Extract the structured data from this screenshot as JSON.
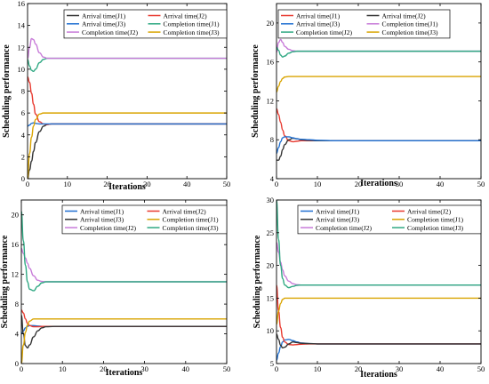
{
  "colors": {
    "blue": "#1f6fd1",
    "red": "#e8392f",
    "black": "#333333",
    "teal": "#138a9e",
    "purple": "#c77ad8",
    "green": "#2ea882",
    "orange": "#d9a400"
  },
  "chart_data": [
    {
      "type": "line",
      "xlabel": "Iterations",
      "ylabel": "Scheduling performance",
      "xlim": [
        0,
        50
      ],
      "ylim": [
        0,
        16
      ],
      "xticks": [
        0,
        10,
        20,
        30,
        40,
        50
      ],
      "yticks": [
        0,
        2,
        4,
        6,
        8,
        10,
        12,
        14,
        16
      ],
      "legend_cols": 2,
      "series": [
        {
          "name": "Arrival time(J1)",
          "color": "black",
          "x": [
            0,
            0.5,
            1,
            1.5,
            2,
            3,
            4,
            5,
            6,
            8,
            10,
            15,
            20,
            30,
            40,
            50
          ],
          "y": [
            0,
            0.8,
            1.6,
            2.5,
            3.3,
            4.3,
            4.8,
            4.95,
            5.0,
            5.0,
            5.0,
            5.0,
            5.0,
            5.0,
            5.0,
            5.0
          ]
        },
        {
          "name": "Arrival time(J2)",
          "color": "red",
          "x": [
            0,
            0.5,
            1,
            1.5,
            2,
            3,
            4,
            5,
            6,
            8,
            10,
            15,
            20,
            30,
            40,
            50
          ],
          "y": [
            9.3,
            8.8,
            7.8,
            6.8,
            5.9,
            5.2,
            5.0,
            4.95,
            5.0,
            5.0,
            5.0,
            5.0,
            5.0,
            5.0,
            5.0,
            5.0
          ]
        },
        {
          "name": "Arrival time(J3)",
          "color": "blue",
          "x": [
            0,
            0.5,
            1,
            1.5,
            2,
            3,
            4,
            5,
            6,
            8,
            10,
            15,
            20,
            30,
            40,
            50
          ],
          "y": [
            4.8,
            4.9,
            5.05,
            5.1,
            5.05,
            5.0,
            5.0,
            5.0,
            5.0,
            5.0,
            5.0,
            5.0,
            5.0,
            5.0,
            5.0,
            5.0
          ]
        },
        {
          "name": "Completion time(J1)",
          "color": "green",
          "x": [
            0,
            0.5,
            1,
            1.5,
            2,
            3,
            4,
            5,
            6,
            8,
            10,
            15,
            20,
            30,
            40,
            50
          ],
          "y": [
            10.9,
            10.3,
            9.9,
            9.8,
            10.0,
            10.6,
            10.9,
            11.0,
            11.0,
            11.0,
            11.0,
            11.0,
            11.0,
            11.0,
            11.0,
            11.0
          ]
        },
        {
          "name": "Completion time(J2)",
          "color": "purple",
          "x": [
            0,
            0.5,
            1,
            1.5,
            2,
            3,
            4,
            5,
            6,
            8,
            10,
            15,
            20,
            30,
            40,
            50
          ],
          "y": [
            11.0,
            12.0,
            12.8,
            12.7,
            12.3,
            11.5,
            11.1,
            11.0,
            11.0,
            11.0,
            11.0,
            11.0,
            11.0,
            11.0,
            11.0,
            11.0
          ]
        },
        {
          "name": "Completion time(J3)",
          "color": "orange",
          "x": [
            0,
            0.5,
            1,
            1.5,
            2,
            3,
            4,
            5,
            6,
            8,
            10,
            15,
            20,
            30,
            40,
            50
          ],
          "y": [
            0,
            2.3,
            3.8,
            4.8,
            5.4,
            5.9,
            6.0,
            6.0,
            6.0,
            6.0,
            6.0,
            6.0,
            6.0,
            6.0,
            6.0,
            6.0
          ]
        }
      ]
    },
    {
      "type": "line",
      "xlabel": "Iterations",
      "ylabel": "Scheduling performance",
      "xlim": [
        0,
        50
      ],
      "ylim": [
        4,
        22
      ],
      "xticks": [
        0,
        10,
        20,
        30,
        40,
        50
      ],
      "yticks": [
        4,
        8,
        12,
        16,
        20
      ],
      "legend_cols": 2,
      "series": [
        {
          "name": "Arrival time(J1)",
          "color": "red",
          "x": [
            0,
            0.5,
            1,
            1.5,
            2,
            3,
            4,
            5,
            6,
            8,
            10,
            15,
            20,
            30,
            40,
            50
          ],
          "y": [
            11.2,
            10.6,
            9.8,
            9.0,
            8.4,
            7.9,
            7.8,
            7.85,
            7.9,
            7.9,
            7.9,
            7.9,
            7.9,
            7.9,
            7.9,
            7.9
          ]
        },
        {
          "name": "Arrival time(J2)",
          "color": "black",
          "x": [
            0,
            0.5,
            1,
            1.5,
            2,
            3,
            4,
            5,
            6,
            8,
            10,
            15,
            20,
            30,
            40,
            50
          ],
          "y": [
            5.9,
            5.9,
            6.3,
            7.0,
            7.5,
            8.0,
            8.15,
            8.1,
            8.0,
            7.95,
            7.9,
            7.9,
            7.9,
            7.9,
            7.9,
            7.9
          ]
        },
        {
          "name": "Arrival time(J3)",
          "color": "blue",
          "x": [
            0,
            0.5,
            1,
            1.5,
            2,
            3,
            4,
            5,
            6,
            8,
            10,
            15,
            20,
            30,
            40,
            50
          ],
          "y": [
            6.6,
            7.2,
            7.8,
            8.2,
            8.3,
            8.3,
            8.2,
            8.1,
            8.05,
            8.0,
            7.95,
            7.9,
            7.9,
            7.9,
            7.9,
            7.9
          ]
        },
        {
          "name": "Completion time(J1)",
          "color": "purple",
          "x": [
            0,
            0.5,
            1,
            1.5,
            2,
            3,
            4,
            5,
            6,
            8,
            10,
            15,
            20,
            30,
            40,
            50
          ],
          "y": [
            17.0,
            18.0,
            18.3,
            18.0,
            17.6,
            17.3,
            17.15,
            17.1,
            17.1,
            17.1,
            17.1,
            17.1,
            17.1,
            17.1,
            17.1,
            17.1
          ]
        },
        {
          "name": "Completion time(J2)",
          "color": "green",
          "x": [
            0,
            0.5,
            1,
            1.5,
            2,
            3,
            4,
            5,
            6,
            8,
            10,
            15,
            20,
            30,
            40,
            50
          ],
          "y": [
            17.5,
            17.2,
            16.7,
            16.5,
            16.6,
            16.9,
            17.05,
            17.1,
            17.1,
            17.1,
            17.1,
            17.1,
            17.1,
            17.1,
            17.1,
            17.1
          ]
        },
        {
          "name": "Completion time(J3)",
          "color": "orange",
          "x": [
            0,
            0.5,
            1,
            1.5,
            2,
            3,
            4,
            5,
            6,
            8,
            10,
            15,
            20,
            30,
            40,
            50
          ],
          "y": [
            12.9,
            13.5,
            14.0,
            14.3,
            14.45,
            14.5,
            14.5,
            14.5,
            14.5,
            14.5,
            14.5,
            14.5,
            14.5,
            14.5,
            14.5,
            14.5
          ]
        }
      ]
    },
    {
      "type": "line",
      "xlabel": "Iterations",
      "ylabel": "Scheduling performance",
      "xlim": [
        0,
        50
      ],
      "ylim": [
        0,
        22
      ],
      "xticks": [
        0,
        10,
        20,
        30,
        40,
        50
      ],
      "yticks": [
        0,
        4,
        8,
        12,
        16,
        20
      ],
      "legend_cols": 2,
      "series": [
        {
          "name": "Arrival time(J1)",
          "color": "blue",
          "x": [
            0,
            0.5,
            1,
            1.5,
            2,
            3,
            4,
            5,
            6,
            8,
            10,
            15,
            20,
            30,
            40,
            50
          ],
          "y": [
            4.0,
            4.4,
            4.8,
            5.0,
            5.1,
            5.1,
            5.05,
            5.0,
            5.0,
            5.0,
            5.0,
            5.0,
            5.0,
            5.0,
            5.0,
            5.0
          ]
        },
        {
          "name": "Arrival time(J2)",
          "color": "red",
          "x": [
            0,
            0.5,
            1,
            1.5,
            2,
            3,
            4,
            5,
            6,
            8,
            10,
            15,
            20,
            30,
            40,
            50
          ],
          "y": [
            7.2,
            6.8,
            6.0,
            5.4,
            5.1,
            4.95,
            4.95,
            5.0,
            5.0,
            5.0,
            5.0,
            5.0,
            5.0,
            5.0,
            5.0,
            5.0
          ]
        },
        {
          "name": "Arrival time(J3)",
          "color": "black",
          "x": [
            0,
            0.5,
            1,
            1.5,
            2,
            3,
            4,
            5,
            6,
            8,
            10,
            15,
            20,
            30,
            40,
            50
          ],
          "y": [
            6.5,
            4.0,
            2.4,
            2.1,
            2.5,
            3.6,
            4.4,
            4.8,
            4.95,
            5.0,
            5.0,
            5.0,
            5.0,
            5.0,
            5.0,
            5.0
          ]
        },
        {
          "name": "Completion time(J1)",
          "color": "orange",
          "x": [
            0,
            0.5,
            1,
            1.5,
            2,
            3,
            4,
            5,
            6,
            8,
            10,
            15,
            20,
            30,
            40,
            50
          ],
          "y": [
            0,
            2.5,
            4.2,
            5.2,
            5.7,
            6.0,
            6.0,
            6.0,
            6.0,
            6.0,
            6.0,
            6.0,
            6.0,
            6.0,
            6.0,
            6.0
          ]
        },
        {
          "name": "Completion time(J2)",
          "color": "purple",
          "x": [
            0,
            0.5,
            1,
            1.5,
            2,
            3,
            4,
            5,
            6,
            8,
            10,
            15,
            20,
            30,
            40,
            50
          ],
          "y": [
            15.5,
            14.8,
            14.2,
            13.5,
            12.8,
            11.8,
            11.2,
            11.05,
            11.0,
            11.0,
            11.0,
            11.0,
            11.0,
            11.0,
            11.0,
            11.0
          ]
        },
        {
          "name": "Completion time(J3)",
          "color": "green",
          "x": [
            0,
            0.5,
            1,
            1.5,
            2,
            3,
            4,
            5,
            6,
            8,
            10,
            15,
            20,
            30,
            40,
            50
          ],
          "y": [
            20.5,
            16.5,
            13.2,
            11.0,
            10.0,
            9.8,
            10.4,
            10.85,
            11.0,
            11.0,
            11.0,
            11.0,
            11.0,
            11.0,
            11.0,
            11.0
          ]
        }
      ]
    },
    {
      "type": "line",
      "xlabel": "Iterations",
      "ylabel": "Scheduling performance",
      "xlim": [
        0,
        50
      ],
      "ylim": [
        5,
        30
      ],
      "xticks": [
        0,
        10,
        20,
        30,
        40,
        50
      ],
      "yticks": [
        5,
        10,
        15,
        20,
        25,
        30
      ],
      "legend_cols": 2,
      "series": [
        {
          "name": "Arrival time(J1)",
          "color": "blue",
          "x": [
            0,
            0.5,
            1,
            1.5,
            2,
            3,
            4,
            5,
            6,
            8,
            10,
            15,
            20,
            30,
            40,
            50
          ],
          "y": [
            5.5,
            6.6,
            7.6,
            8.3,
            8.6,
            8.7,
            8.5,
            8.3,
            8.15,
            8.05,
            8.0,
            8.0,
            8.0,
            8.0,
            8.0,
            8.0
          ]
        },
        {
          "name": "Arrival time(J2)",
          "color": "red",
          "x": [
            0,
            0.5,
            1,
            1.5,
            2,
            3,
            4,
            5,
            6,
            8,
            10,
            15,
            20,
            30,
            40,
            50
          ],
          "y": [
            17.0,
            13.0,
            10.5,
            9.0,
            8.3,
            7.9,
            7.85,
            7.9,
            7.95,
            8.0,
            8.0,
            8.0,
            8.0,
            8.0,
            8.0,
            8.0
          ]
        },
        {
          "name": "Arrival time(J3)",
          "color": "black",
          "x": [
            0,
            0.5,
            1,
            1.5,
            2,
            3,
            4,
            5,
            6,
            8,
            10,
            15,
            20,
            30,
            40,
            50
          ],
          "y": [
            9.5,
            8.7,
            7.8,
            7.4,
            7.5,
            8.0,
            8.3,
            8.2,
            8.1,
            8.05,
            8.0,
            8.0,
            8.0,
            8.0,
            8.0,
            8.0
          ]
        },
        {
          "name": "Completion time(J1)",
          "color": "orange",
          "x": [
            0,
            0.5,
            1,
            1.5,
            2,
            3,
            4,
            5,
            6,
            8,
            10,
            15,
            20,
            30,
            40,
            50
          ],
          "y": [
            11.0,
            13.0,
            14.2,
            14.8,
            15.0,
            15.0,
            15.0,
            15.0,
            15.0,
            15.0,
            15.0,
            15.0,
            15.0,
            15.0,
            15.0,
            15.0
          ]
        },
        {
          "name": "Completion time(J2)",
          "color": "purple",
          "x": [
            0,
            0.5,
            1,
            1.5,
            2,
            3,
            4,
            5,
            6,
            8,
            10,
            15,
            20,
            30,
            40,
            50
          ],
          "y": [
            23.5,
            22.0,
            20.5,
            19.3,
            18.4,
            17.6,
            17.2,
            17.05,
            17.0,
            17.0,
            17.0,
            17.0,
            17.0,
            17.0,
            17.0,
            17.0
          ]
        },
        {
          "name": "Completion time(J3)",
          "color": "green",
          "x": [
            0,
            0.5,
            1,
            1.5,
            2,
            3,
            4,
            5,
            6,
            8,
            10,
            15,
            20,
            30,
            40,
            50
          ],
          "y": [
            30.0,
            24.0,
            20.0,
            18.0,
            17.0,
            16.6,
            16.8,
            16.95,
            17.0,
            17.0,
            17.0,
            17.0,
            17.0,
            17.0,
            17.0,
            17.0
          ]
        }
      ]
    }
  ]
}
